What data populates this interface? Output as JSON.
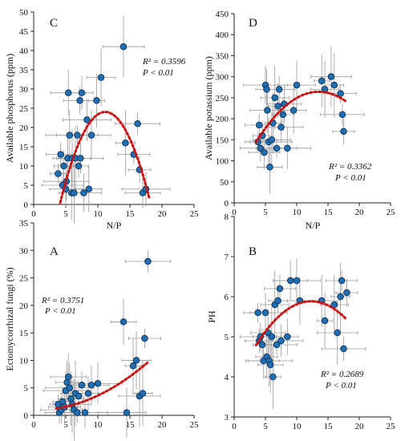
{
  "chart_data": [
    {
      "panel": "C",
      "type": "scatter",
      "xlabel": "N/P",
      "ylabel": "Available phosphorus (ppm)",
      "xlim": [
        0,
        25
      ],
      "ylim": [
        0,
        50
      ],
      "xticks": [
        0,
        5,
        10,
        15,
        20,
        25
      ],
      "yticks": [
        0,
        5,
        10,
        15,
        20,
        25,
        30,
        35,
        40,
        45,
        50
      ],
      "r2_label": "R² = 0.3596",
      "p_label": "P < 0.01",
      "marker_color": "#1f6fb2",
      "fit_color": "#cc1111",
      "points": [
        {
          "x": 3.8,
          "y": 8
        },
        {
          "x": 4.2,
          "y": 13
        },
        {
          "x": 4.5,
          "y": 5
        },
        {
          "x": 4.7,
          "y": 10
        },
        {
          "x": 5.0,
          "y": 4
        },
        {
          "x": 5.1,
          "y": 6
        },
        {
          "x": 5.3,
          "y": 12
        },
        {
          "x": 5.4,
          "y": 29
        },
        {
          "x": 5.6,
          "y": 18
        },
        {
          "x": 5.9,
          "y": 3
        },
        {
          "x": 6.0,
          "y": 12
        },
        {
          "x": 6.3,
          "y": 3
        },
        {
          "x": 6.5,
          "y": 12
        },
        {
          "x": 6.8,
          "y": 18
        },
        {
          "x": 7.0,
          "y": 10
        },
        {
          "x": 7.2,
          "y": 27
        },
        {
          "x": 7.3,
          "y": 12
        },
        {
          "x": 7.5,
          "y": 29
        },
        {
          "x": 7.8,
          "y": 3
        },
        {
          "x": 8.3,
          "y": 22
        },
        {
          "x": 8.6,
          "y": 4
        },
        {
          "x": 9.0,
          "y": 18
        },
        {
          "x": 9.8,
          "y": 27
        },
        {
          "x": 10.5,
          "y": 33
        },
        {
          "x": 14.0,
          "y": 41
        },
        {
          "x": 14.3,
          "y": 16
        },
        {
          "x": 15.6,
          "y": 13
        },
        {
          "x": 16.2,
          "y": 21
        },
        {
          "x": 16.5,
          "y": 9
        },
        {
          "x": 17.0,
          "y": 3
        },
        {
          "x": 17.5,
          "y": 4
        }
      ],
      "fit": {
        "a": -0.477,
        "b": 10.65,
        "c": -35.4,
        "x_range": [
          3.5,
          18.0
        ]
      }
    },
    {
      "panel": "D",
      "type": "scatter",
      "xlabel": "N/P",
      "ylabel": "Available potassium (ppm)",
      "xlim": [
        0,
        25
      ],
      "ylim": [
        0,
        450
      ],
      "xticks": [
        0,
        5,
        10,
        15,
        20,
        25
      ],
      "yticks": [
        0,
        50,
        100,
        150,
        200,
        250,
        300,
        350,
        400,
        450
      ],
      "r2_label": "R² = 0.3362",
      "p_label": "P < 0.01",
      "marker_color": "#1f6fb2",
      "fit_color": "#cc1111",
      "points": [
        {
          "x": 3.8,
          "y": 145
        },
        {
          "x": 4.0,
          "y": 185
        },
        {
          "x": 4.2,
          "y": 130
        },
        {
          "x": 4.5,
          "y": 160
        },
        {
          "x": 4.8,
          "y": 120
        },
        {
          "x": 5.0,
          "y": 280
        },
        {
          "x": 5.2,
          "y": 270
        },
        {
          "x": 5.3,
          "y": 220
        },
        {
          "x": 5.5,
          "y": 145
        },
        {
          "x": 5.7,
          "y": 85
        },
        {
          "x": 6.0,
          "y": 150
        },
        {
          "x": 6.2,
          "y": 190
        },
        {
          "x": 6.5,
          "y": 250
        },
        {
          "x": 6.8,
          "y": 130
        },
        {
          "x": 7.0,
          "y": 230
        },
        {
          "x": 7.2,
          "y": 270
        },
        {
          "x": 7.5,
          "y": 180
        },
        {
          "x": 7.8,
          "y": 210
        },
        {
          "x": 8.0,
          "y": 235
        },
        {
          "x": 8.5,
          "y": 130
        },
        {
          "x": 9.5,
          "y": 220
        },
        {
          "x": 10.0,
          "y": 280
        },
        {
          "x": 14.0,
          "y": 290
        },
        {
          "x": 14.5,
          "y": 270
        },
        {
          "x": 15.5,
          "y": 300
        },
        {
          "x": 16.0,
          "y": 280
        },
        {
          "x": 17.0,
          "y": 260
        },
        {
          "x": 17.3,
          "y": 210
        },
        {
          "x": 17.5,
          "y": 170
        }
      ],
      "fit": {
        "a": -1.2,
        "b": 32.4,
        "c": 45.5,
        "x_range": [
          3.5,
          18.0
        ]
      }
    },
    {
      "panel": "A",
      "type": "scatter",
      "xlabel": "",
      "ylabel": "Ectomycorrhizal fungi (%)",
      "xlim": [
        0,
        25
      ],
      "ylim": [
        0,
        35
      ],
      "xticks": [
        0,
        5,
        10,
        15,
        20,
        25
      ],
      "yticks": [
        0,
        5,
        10,
        15,
        20,
        25,
        30,
        35
      ],
      "r2_label": "R² = 0.3751",
      "p_label": "P < 0.01",
      "marker_color": "#1f6fb2",
      "fit_color": "#cc1111",
      "points": [
        {
          "x": 3.8,
          "y": 2.0
        },
        {
          "x": 4.0,
          "y": 0.5
        },
        {
          "x": 4.3,
          "y": 1.0
        },
        {
          "x": 4.5,
          "y": 2.5
        },
        {
          "x": 4.8,
          "y": 1.5
        },
        {
          "x": 5.0,
          "y": 4.5
        },
        {
          "x": 5.2,
          "y": 6.0
        },
        {
          "x": 5.4,
          "y": 7.0
        },
        {
          "x": 5.6,
          "y": 5.0
        },
        {
          "x": 5.8,
          "y": 3.0
        },
        {
          "x": 6.0,
          "y": 2.0
        },
        {
          "x": 6.3,
          "y": 1.0
        },
        {
          "x": 6.5,
          "y": 4.0
        },
        {
          "x": 6.8,
          "y": 0.5
        },
        {
          "x": 7.0,
          "y": 3.5
        },
        {
          "x": 7.5,
          "y": 5.5
        },
        {
          "x": 8.0,
          "y": 0.5
        },
        {
          "x": 8.5,
          "y": 4.0
        },
        {
          "x": 9.0,
          "y": 5.5
        },
        {
          "x": 10.0,
          "y": 5.8
        },
        {
          "x": 14.0,
          "y": 17.0
        },
        {
          "x": 14.5,
          "y": 0.5
        },
        {
          "x": 15.5,
          "y": 9.0
        },
        {
          "x": 16.0,
          "y": 10.0
        },
        {
          "x": 16.5,
          "y": 3.5
        },
        {
          "x": 17.0,
          "y": 4.0
        },
        {
          "x": 17.3,
          "y": 14.0
        },
        {
          "x": 17.8,
          "y": 28.0
        }
      ],
      "fit": {
        "a": 0.029,
        "b": -0.03,
        "c": 1.0,
        "x_range": [
          3.5,
          18.0
        ]
      }
    },
    {
      "panel": "B",
      "type": "scatter",
      "xlabel": "",
      "ylabel": "PH",
      "xlim": [
        0,
        25
      ],
      "ylim": [
        3,
        8
      ],
      "xticks": [
        0,
        5,
        10,
        15,
        20,
        25
      ],
      "yticks": [
        3,
        4,
        5,
        6,
        7,
        8
      ],
      "r2_label": "R² = 0.2689",
      "p_label": "P < 0.01",
      "marker_color": "#1f6fb2",
      "fit_color": "#cc1111",
      "points": [
        {
          "x": 3.8,
          "y": 5.6
        },
        {
          "x": 4.0,
          "y": 4.9
        },
        {
          "x": 4.2,
          "y": 5.0
        },
        {
          "x": 4.5,
          "y": 4.8
        },
        {
          "x": 4.7,
          "y": 4.4
        },
        {
          "x": 5.0,
          "y": 5.6
        },
        {
          "x": 5.2,
          "y": 4.5
        },
        {
          "x": 5.4,
          "y": 5.1
        },
        {
          "x": 5.6,
          "y": 4.4
        },
        {
          "x": 5.8,
          "y": 4.3
        },
        {
          "x": 6.0,
          "y": 5.0
        },
        {
          "x": 6.2,
          "y": 4.0
        },
        {
          "x": 6.5,
          "y": 5.8
        },
        {
          "x": 6.8,
          "y": 4.8
        },
        {
          "x": 7.0,
          "y": 5.9
        },
        {
          "x": 7.3,
          "y": 6.2
        },
        {
          "x": 7.5,
          "y": 4.9
        },
        {
          "x": 8.5,
          "y": 5.0
        },
        {
          "x": 9.0,
          "y": 6.4
        },
        {
          "x": 10.0,
          "y": 6.4
        },
        {
          "x": 10.5,
          "y": 5.9
        },
        {
          "x": 14.0,
          "y": 5.9
        },
        {
          "x": 14.5,
          "y": 5.4
        },
        {
          "x": 16.0,
          "y": 5.8
        },
        {
          "x": 16.5,
          "y": 5.1
        },
        {
          "x": 17.0,
          "y": 6.0
        },
        {
          "x": 17.2,
          "y": 6.4
        },
        {
          "x": 17.5,
          "y": 4.7
        },
        {
          "x": 18.0,
          "y": 6.1
        }
      ],
      "fit": {
        "a": -0.0141,
        "b": 0.347,
        "c": 3.75,
        "x_range": [
          3.5,
          18.0
        ]
      }
    }
  ]
}
